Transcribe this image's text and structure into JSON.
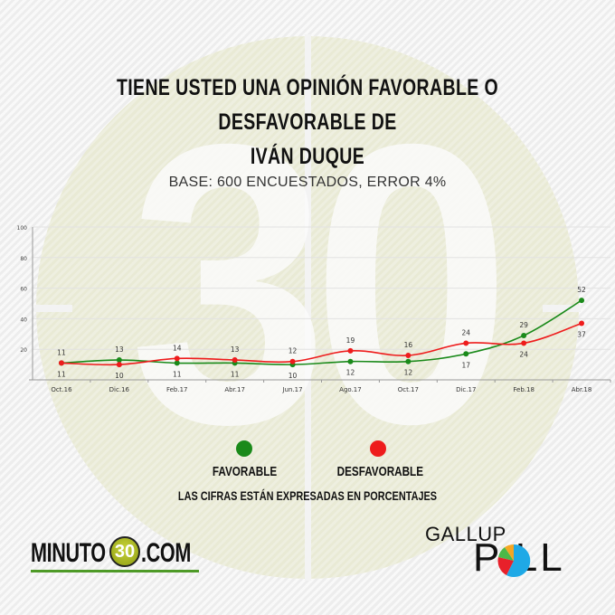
{
  "header": {
    "title": "TIENE USTED UNA OPINIÓN FAVORABLE O DESFAVORABLE DE IVÁN DUQUE",
    "subtitle": "BASE: 600 ENCUESTADOS, ERROR 4%"
  },
  "watermark": {
    "text": "30"
  },
  "legend": {
    "favorable": {
      "label": "FAVORABLE",
      "color": "#1a8a1a"
    },
    "desfavorable": {
      "label": "DESFAVORABLE",
      "color": "#ee1c1c"
    }
  },
  "note": "LAS CIFRAS ESTÁN EXPRESADAS EN PORCENTAJES",
  "logos": {
    "minuto30": {
      "left": "MINUTO",
      "circle": "30",
      "right": ".COM"
    },
    "gallup": {
      "top": "GALLUP",
      "bottom": "P LL"
    }
  },
  "chart_data": {
    "type": "line",
    "title": "TIENE USTED UNA OPINIÓN FAVORABLE O DESFAVORABLE DE IVÁN DUQUE",
    "subtitle": "BASE: 600 ENCUESTADOS, ERROR 4%",
    "categories": [
      "Oct.16",
      "Dic.16",
      "Feb.17",
      "Abr.17",
      "Jun.17",
      "Ago.17",
      "Oct.17",
      "Dic.17",
      "Feb.18",
      "Abr.18"
    ],
    "series": [
      {
        "name": "FAVORABLE",
        "color": "#1a8a1a",
        "values": [
          11,
          13,
          11,
          11,
          10,
          12,
          12,
          17,
          29,
          52
        ]
      },
      {
        "name": "DESFAVORABLE",
        "color": "#ee1c1c",
        "values": [
          11,
          10,
          14,
          13,
          12,
          19,
          16,
          24,
          24,
          37
        ]
      }
    ],
    "yticks": [
      20,
      40,
      60,
      80,
      100
    ],
    "ylim": [
      0,
      100
    ],
    "xlabel": "",
    "ylabel": "",
    "grid": true,
    "legend_position": "bottom",
    "annotation": "LAS CIFRAS ESTÁN EXPRESADAS EN PORCENTAJES"
  }
}
